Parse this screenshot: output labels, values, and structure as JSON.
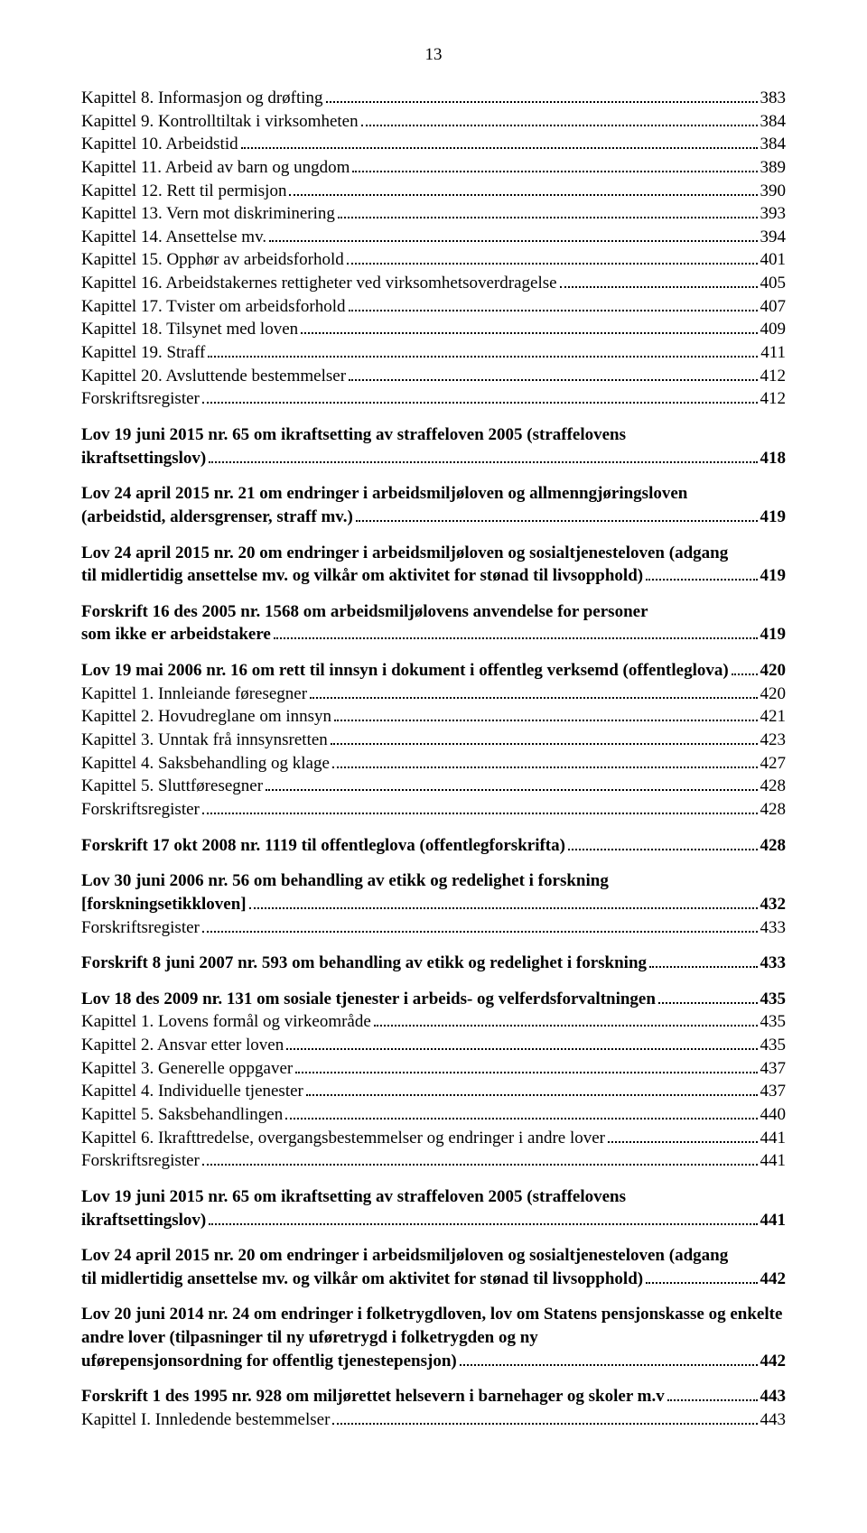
{
  "page_number": "13",
  "font": {
    "family": "Times New Roman",
    "body_size_pt": 14,
    "bold_weight": 700
  },
  "colors": {
    "text": "#000000",
    "background": "#ffffff",
    "leader": "#000000"
  },
  "entries": [
    {
      "label": "Kapittel 8. Informasjon og drøfting",
      "page": "383",
      "bold": false,
      "gap": false,
      "cont": null
    },
    {
      "label": "Kapittel 9. Kontrolltiltak i virksomheten",
      "page": "384",
      "bold": false,
      "gap": false,
      "cont": null
    },
    {
      "label": "Kapittel 10. Arbeidstid",
      "page": "384",
      "bold": false,
      "gap": false,
      "cont": null
    },
    {
      "label": "Kapittel 11. Arbeid av barn og ungdom",
      "page": "389",
      "bold": false,
      "gap": false,
      "cont": null
    },
    {
      "label": "Kapittel 12. Rett til permisjon",
      "page": "390",
      "bold": false,
      "gap": false,
      "cont": null
    },
    {
      "label": "Kapittel 13. Vern mot diskriminering",
      "page": "393",
      "bold": false,
      "gap": false,
      "cont": null
    },
    {
      "label": "Kapittel 14. Ansettelse mv.",
      "page": "394",
      "bold": false,
      "gap": false,
      "cont": null
    },
    {
      "label": "Kapittel 15. Opphør av arbeidsforhold",
      "page": "401",
      "bold": false,
      "gap": false,
      "cont": null
    },
    {
      "label": "Kapittel 16. Arbeidstakernes rettigheter ved virksomhetsoverdragelse",
      "page": "405",
      "bold": false,
      "gap": false,
      "cont": null
    },
    {
      "label": "Kapittel 17. Tvister om arbeidsforhold",
      "page": "407",
      "bold": false,
      "gap": false,
      "cont": null
    },
    {
      "label": "Kapittel 18. Tilsynet med loven",
      "page": "409",
      "bold": false,
      "gap": false,
      "cont": null
    },
    {
      "label": "Kapittel 19. Straff",
      "page": "411",
      "bold": false,
      "gap": false,
      "cont": null
    },
    {
      "label": "Kapittel 20. Avsluttende bestemmelser",
      "page": "412",
      "bold": false,
      "gap": false,
      "cont": null
    },
    {
      "label": "Forskriftsregister",
      "page": "412",
      "bold": false,
      "gap": false,
      "cont": null
    },
    {
      "label": "ikraftsettingslov)",
      "page": "418",
      "bold": true,
      "gap": true,
      "cont": "Lov 19 juni 2015 nr. 65 om ikraftsetting av straffeloven 2005 (straffelovens"
    },
    {
      "label": "(arbeidstid, aldersgrenser, straff mv.)",
      "page": "419",
      "bold": true,
      "gap": true,
      "cont": "Lov 24 april 2015 nr. 21 om endringer i arbeidsmiljøloven og allmenngjøringsloven"
    },
    {
      "label": "til midlertidig ansettelse mv. og vilkår om aktivitet for stønad til livsopphold)",
      "page": "419",
      "bold": true,
      "gap": true,
      "cont": "Lov 24 april 2015 nr. 20 om endringer i arbeidsmiljøloven og sosialtjenesteloven (adgang"
    },
    {
      "label": "som ikke er arbeidstakere",
      "page": "419",
      "bold": true,
      "gap": true,
      "cont": "Forskrift 16 des 2005 nr. 1568 om arbeidsmiljølovens anvendelse for personer"
    },
    {
      "label": "Lov 19 mai 2006 nr. 16 om rett til innsyn i dokument i offentleg verksemd (offentleglova)",
      "page": "420",
      "bold": true,
      "gap": true,
      "cont": null
    },
    {
      "label": "Kapittel 1. Innleiande føresegner",
      "page": "420",
      "bold": false,
      "gap": false,
      "cont": null
    },
    {
      "label": "Kapittel 2. Hovudreglane om innsyn",
      "page": "421",
      "bold": false,
      "gap": false,
      "cont": null
    },
    {
      "label": "Kapittel 3. Unntak frå innsynsretten",
      "page": "423",
      "bold": false,
      "gap": false,
      "cont": null
    },
    {
      "label": "Kapittel 4. Saksbehandling og klage",
      "page": "427",
      "bold": false,
      "gap": false,
      "cont": null
    },
    {
      "label": "Kapittel 5. Sluttføresegner",
      "page": "428",
      "bold": false,
      "gap": false,
      "cont": null
    },
    {
      "label": "Forskriftsregister",
      "page": "428",
      "bold": false,
      "gap": false,
      "cont": null
    },
    {
      "label": "Forskrift 17 okt 2008 nr. 1119 til offentleglova (offentlegforskrifta)",
      "page": "428",
      "bold": true,
      "gap": true,
      "cont": null
    },
    {
      "label": "[forskningsetikkloven]",
      "page": "432",
      "bold": true,
      "gap": true,
      "cont": "Lov 30 juni 2006 nr. 56 om behandling av etikk og redelighet i forskning"
    },
    {
      "label": "Forskriftsregister",
      "page": "433",
      "bold": false,
      "gap": false,
      "cont": null
    },
    {
      "label": "Forskrift 8 juni 2007 nr. 593 om behandling av etikk og redelighet i forskning",
      "page": "433",
      "bold": true,
      "gap": true,
      "cont": null
    },
    {
      "label": "Lov 18 des 2009 nr. 131 om sosiale tjenester i arbeids- og velferdsforvaltningen",
      "page": "435",
      "bold": true,
      "gap": true,
      "cont": null
    },
    {
      "label": "Kapittel 1. Lovens formål og virkeområde",
      "page": "435",
      "bold": false,
      "gap": false,
      "cont": null
    },
    {
      "label": "Kapittel 2. Ansvar etter loven",
      "page": "435",
      "bold": false,
      "gap": false,
      "cont": null
    },
    {
      "label": "Kapittel 3. Generelle oppgaver",
      "page": "437",
      "bold": false,
      "gap": false,
      "cont": null
    },
    {
      "label": "Kapittel 4. Individuelle tjenester",
      "page": "437",
      "bold": false,
      "gap": false,
      "cont": null
    },
    {
      "label": "Kapittel 5. Saksbehandlingen",
      "page": "440",
      "bold": false,
      "gap": false,
      "cont": null
    },
    {
      "label": "Kapittel 6. Ikrafttredelse, overgangsbestemmelser og endringer i andre lover",
      "page": "441",
      "bold": false,
      "gap": false,
      "cont": null
    },
    {
      "label": "Forskriftsregister",
      "page": "441",
      "bold": false,
      "gap": false,
      "cont": null
    },
    {
      "label": "ikraftsettingslov)",
      "page": "441",
      "bold": true,
      "gap": true,
      "cont": "Lov 19 juni 2015 nr. 65 om ikraftsetting av straffeloven 2005 (straffelovens"
    },
    {
      "label": "til midlertidig ansettelse mv. og vilkår om aktivitet for stønad til livsopphold)",
      "page": "442",
      "bold": true,
      "gap": true,
      "cont": "Lov 24 april 2015 nr. 20 om endringer i arbeidsmiljøloven og sosialtjenesteloven (adgang"
    },
    {
      "label": "uførepensjonsordning for offentlig tjenestepensjon)",
      "page": "442",
      "bold": true,
      "gap": true,
      "cont": "Lov 20 juni 2014 nr. 24 om endringer i folketrygdloven, lov om Statens pensjonskasse og enkelte andre lover (tilpasninger til ny uføretrygd i folketrygden og ny"
    },
    {
      "label": "Forskrift 1 des 1995 nr. 928 om miljørettet helsevern i barnehager og skoler m.v",
      "page": "443",
      "bold": true,
      "gap": true,
      "cont": null
    },
    {
      "label": "Kapittel I. Innledende bestemmelser",
      "page": "443",
      "bold": false,
      "gap": false,
      "cont": null
    }
  ]
}
